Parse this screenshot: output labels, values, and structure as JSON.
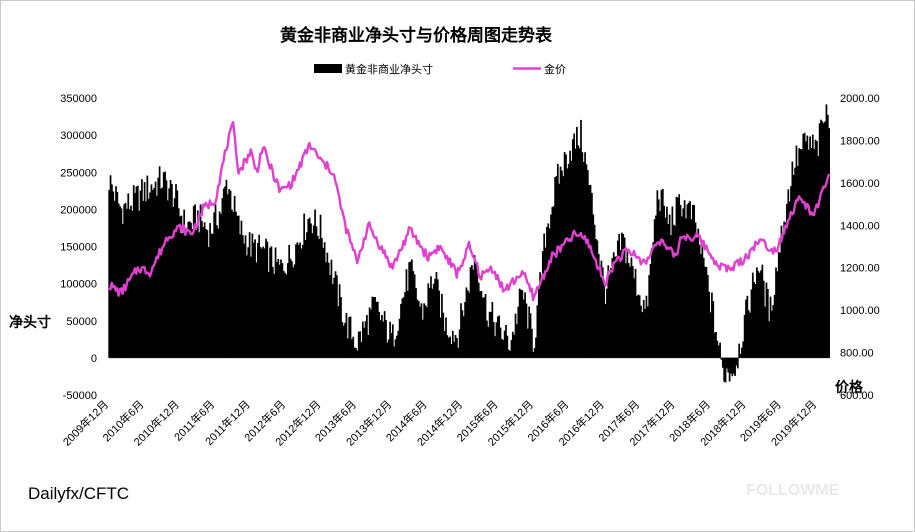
{
  "chart_data": {
    "type": "bar+line",
    "title": "黄金非商业净头寸与价格周图走势表",
    "source": "Dailyfx/CFTC",
    "watermark": "FOLLOWME",
    "colors": {
      "bar": "#000000",
      "line": "#e040d0"
    },
    "legend": {
      "position": "top",
      "entries": [
        {
          "name": "黄金非商业净头寸",
          "kind": "bar",
          "color": "#000000"
        },
        {
          "name": "金价",
          "kind": "line",
          "color": "#e040d0"
        }
      ]
    },
    "y_left": {
      "label": "净头寸",
      "ylim": [
        -50000,
        350000
      ],
      "ticks": [
        "350000",
        "300000",
        "250000",
        "200000",
        "150000",
        "100000",
        "50000",
        "0",
        "-50000"
      ],
      "tick_values": [
        350000,
        300000,
        250000,
        200000,
        150000,
        100000,
        50000,
        0,
        -50000
      ]
    },
    "y_right": {
      "label": "价格",
      "ylim": [
        600,
        2000
      ],
      "ticks": [
        "2000.00",
        "1800.00",
        "1600.00",
        "1400.00",
        "1200.00",
        "1000.00",
        "800.00",
        "600.00"
      ],
      "tick_values": [
        2000,
        1800,
        1600,
        1400,
        1200,
        1000,
        800,
        600
      ]
    },
    "x": {
      "range": [
        "2009-12",
        "2020-02"
      ],
      "ticks": [
        "2009年12月",
        "2010年6月",
        "2010年12月",
        "2011年6月",
        "2011年12月",
        "2012年6月",
        "2012年12月",
        "2013年6月",
        "2013年12月",
        "2014年6月",
        "2014年12月",
        "2015年6月",
        "2015年12月",
        "2016年6月",
        "2016年12月",
        "2017年6月",
        "2017年12月",
        "2018年6月",
        "2018年12月",
        "2019年6月",
        "2019年12月"
      ]
    },
    "net_position_anchors": [
      [
        "2009-12",
        240000
      ],
      [
        "2010-02",
        200000
      ],
      [
        "2010-04",
        210000
      ],
      [
        "2010-06",
        225000
      ],
      [
        "2010-09",
        240000
      ],
      [
        "2010-11",
        220000
      ],
      [
        "2011-01",
        175000
      ],
      [
        "2011-03",
        190000
      ],
      [
        "2011-05",
        170000
      ],
      [
        "2011-07",
        200000
      ],
      [
        "2011-08",
        240000
      ],
      [
        "2011-10",
        175000
      ],
      [
        "2011-12",
        150000
      ],
      [
        "2012-02",
        145000
      ],
      [
        "2012-05",
        120000
      ],
      [
        "2012-07",
        140000
      ],
      [
        "2012-10",
        190000
      ],
      [
        "2012-12",
        170000
      ],
      [
        "2013-02",
        110000
      ],
      [
        "2013-04",
        50000
      ],
      [
        "2013-06",
        20000
      ],
      [
        "2013-09",
        70000
      ],
      [
        "2013-12",
        25000
      ],
      [
        "2014-03",
        120000
      ],
      [
        "2014-05",
        60000
      ],
      [
        "2014-07",
        110000
      ],
      [
        "2014-09",
        45000
      ],
      [
        "2014-11",
        30000
      ],
      [
        "2015-02",
        140000
      ],
      [
        "2015-04",
        65000
      ],
      [
        "2015-06",
        40000
      ],
      [
        "2015-08",
        20000
      ],
      [
        "2015-10",
        90000
      ],
      [
        "2015-12",
        20000
      ],
      [
        "2016-02",
        170000
      ],
      [
        "2016-04",
        240000
      ],
      [
        "2016-06",
        280000
      ],
      [
        "2016-08",
        300000
      ],
      [
        "2016-10",
        200000
      ],
      [
        "2016-12",
        90000
      ],
      [
        "2017-03",
        160000
      ],
      [
        "2017-05",
        110000
      ],
      [
        "2017-07",
        60000
      ],
      [
        "2017-09",
        225000
      ],
      [
        "2017-11",
        180000
      ],
      [
        "2018-01",
        210000
      ],
      [
        "2018-03",
        190000
      ],
      [
        "2018-05",
        120000
      ],
      [
        "2018-07",
        30000
      ],
      [
        "2018-08",
        -20000
      ],
      [
        "2018-10",
        -15000
      ],
      [
        "2018-12",
        60000
      ],
      [
        "2019-02",
        130000
      ],
      [
        "2019-04",
        60000
      ],
      [
        "2019-06",
        170000
      ],
      [
        "2019-08",
        260000
      ],
      [
        "2019-10",
        290000
      ],
      [
        "2019-12",
        280000
      ],
      [
        "2020-01",
        320000
      ],
      [
        "2020-02",
        330000
      ]
    ],
    "gold_price_anchors": [
      [
        "2009-12",
        1120
      ],
      [
        "2010-02",
        1080
      ],
      [
        "2010-05",
        1200
      ],
      [
        "2010-07",
        1180
      ],
      [
        "2010-10",
        1350
      ],
      [
        "2010-12",
        1390
      ],
      [
        "2011-02",
        1360
      ],
      [
        "2011-04",
        1480
      ],
      [
        "2011-06",
        1520
      ],
      [
        "2011-08",
        1780
      ],
      [
        "2011-09",
        1870
      ],
      [
        "2011-10",
        1650
      ],
      [
        "2011-12",
        1750
      ],
      [
        "2012-01",
        1650
      ],
      [
        "2012-02",
        1770
      ],
      [
        "2012-05",
        1560
      ],
      [
        "2012-07",
        1600
      ],
      [
        "2012-10",
        1780
      ],
      [
        "2012-12",
        1700
      ],
      [
        "2013-02",
        1650
      ],
      [
        "2013-04",
        1400
      ],
      [
        "2013-06",
        1230
      ],
      [
        "2013-08",
        1400
      ],
      [
        "2013-12",
        1200
      ],
      [
        "2014-03",
        1380
      ],
      [
        "2014-06",
        1250
      ],
      [
        "2014-08",
        1300
      ],
      [
        "2014-11",
        1170
      ],
      [
        "2015-01",
        1300
      ],
      [
        "2015-03",
        1160
      ],
      [
        "2015-05",
        1200
      ],
      [
        "2015-07",
        1090
      ],
      [
        "2015-10",
        1180
      ],
      [
        "2015-12",
        1060
      ],
      [
        "2016-03",
        1250
      ],
      [
        "2016-07",
        1360
      ],
      [
        "2016-09",
        1330
      ],
      [
        "2016-12",
        1130
      ],
      [
        "2017-02",
        1240
      ],
      [
        "2017-04",
        1280
      ],
      [
        "2017-07",
        1220
      ],
      [
        "2017-09",
        1340
      ],
      [
        "2017-12",
        1250
      ],
      [
        "2018-01",
        1350
      ],
      [
        "2018-04",
        1340
      ],
      [
        "2018-07",
        1220
      ],
      [
        "2018-09",
        1190
      ],
      [
        "2018-12",
        1250
      ],
      [
        "2019-02",
        1330
      ],
      [
        "2019-05",
        1280
      ],
      [
        "2019-07",
        1420
      ],
      [
        "2019-09",
        1530
      ],
      [
        "2019-11",
        1460
      ],
      [
        "2019-12",
        1480
      ],
      [
        "2020-01",
        1560
      ],
      [
        "2020-02",
        1650
      ]
    ]
  }
}
